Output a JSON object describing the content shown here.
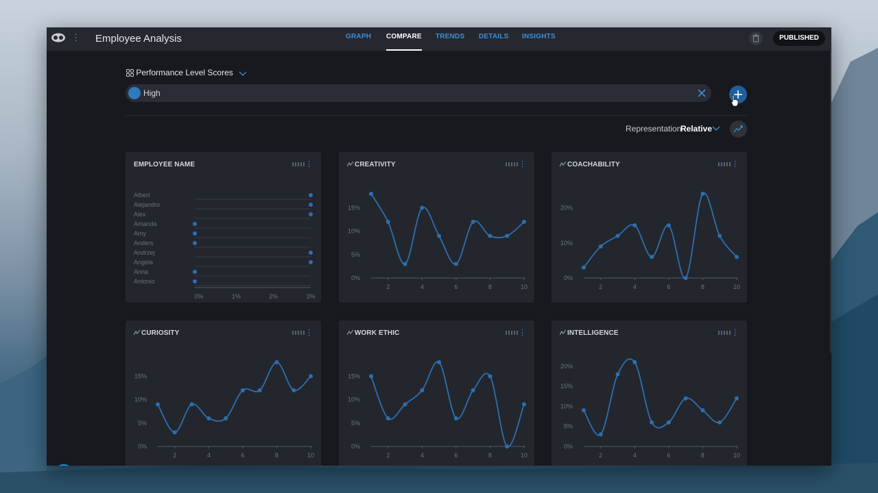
{
  "app": {
    "title": "Employee Analysis",
    "status": "PUBLISHED",
    "tabs": [
      "GRAPH",
      "COMPARE",
      "TRENDS",
      "DETAILS",
      "INSIGHTS"
    ],
    "active_tab": "COMPARE"
  },
  "filters": {
    "heading": "Performance Level Scores",
    "chip_label": "High",
    "chip_color": "#2d7ac0"
  },
  "representation": {
    "label": "Representation",
    "value": "Relative"
  },
  "help_label": "?",
  "colors": {
    "accent": "#3d8fd6",
    "series": "#2d6fb0",
    "panel": "#23262d",
    "background": "#17191e"
  },
  "chart_data": [
    {
      "title": "EMPLOYEE NAME",
      "type": "scatter",
      "categories": [
        "Albert",
        "Alejandro",
        "Alex",
        "Amanda",
        "Amy",
        "Anders",
        "Andrzej",
        "Angela",
        "Anna",
        "Antonio"
      ],
      "values": [
        3,
        3,
        3,
        0,
        0,
        0,
        3,
        3,
        0,
        0
      ],
      "xticks": [
        "0%",
        "1%",
        "2%",
        "3%"
      ],
      "xlim": [
        0,
        3
      ]
    },
    {
      "title": "CREATIVITY",
      "type": "line",
      "x": [
        1,
        2,
        3,
        4,
        5,
        6,
        7,
        8,
        9,
        10
      ],
      "values": [
        18,
        12,
        3,
        15,
        9,
        3,
        12,
        9,
        9,
        12
      ],
      "yticks": [
        "0%",
        "5%",
        "10%",
        "15%"
      ],
      "ylim": [
        0,
        18
      ],
      "xticks": [
        "2",
        "4",
        "6",
        "8",
        "10"
      ]
    },
    {
      "title": "COACHABILITY",
      "type": "line",
      "x": [
        1,
        2,
        3,
        4,
        5,
        6,
        7,
        8,
        9,
        10
      ],
      "values": [
        3,
        9,
        12,
        15,
        6,
        15,
        0,
        24,
        12,
        6
      ],
      "yticks": [
        "0%",
        "10%",
        "20%"
      ],
      "ylim": [
        0,
        24
      ],
      "xticks": [
        "2",
        "4",
        "6",
        "8",
        "10"
      ]
    },
    {
      "title": "CURIOSITY",
      "type": "line",
      "x": [
        1,
        2,
        3,
        4,
        5,
        6,
        7,
        8,
        9,
        10
      ],
      "values": [
        9,
        3,
        9,
        6,
        6,
        12,
        12,
        18,
        12,
        15
      ],
      "yticks": [
        "0%",
        "5%",
        "10%",
        "15%"
      ],
      "ylim": [
        0,
        18
      ],
      "xticks": [
        "2",
        "4",
        "6",
        "8",
        "10"
      ]
    },
    {
      "title": "WORK ETHIC",
      "type": "line",
      "x": [
        1,
        2,
        3,
        4,
        5,
        6,
        7,
        8,
        9,
        10
      ],
      "values": [
        15,
        6,
        9,
        12,
        18,
        6,
        12,
        15,
        0,
        9
      ],
      "yticks": [
        "0%",
        "5%",
        "10%",
        "15%"
      ],
      "ylim": [
        0,
        18
      ],
      "xticks": [
        "2",
        "4",
        "6",
        "8",
        "10"
      ]
    },
    {
      "title": "INTELLIGENCE",
      "type": "line",
      "x": [
        1,
        2,
        3,
        4,
        5,
        6,
        7,
        8,
        9,
        10
      ],
      "values": [
        9,
        3,
        18,
        21,
        6,
        6,
        12,
        9,
        6,
        12
      ],
      "yticks": [
        "0%",
        "5%",
        "10%",
        "15%",
        "20%"
      ],
      "ylim": [
        0,
        21
      ],
      "xticks": [
        "2",
        "4",
        "6",
        "8",
        "10"
      ]
    }
  ]
}
